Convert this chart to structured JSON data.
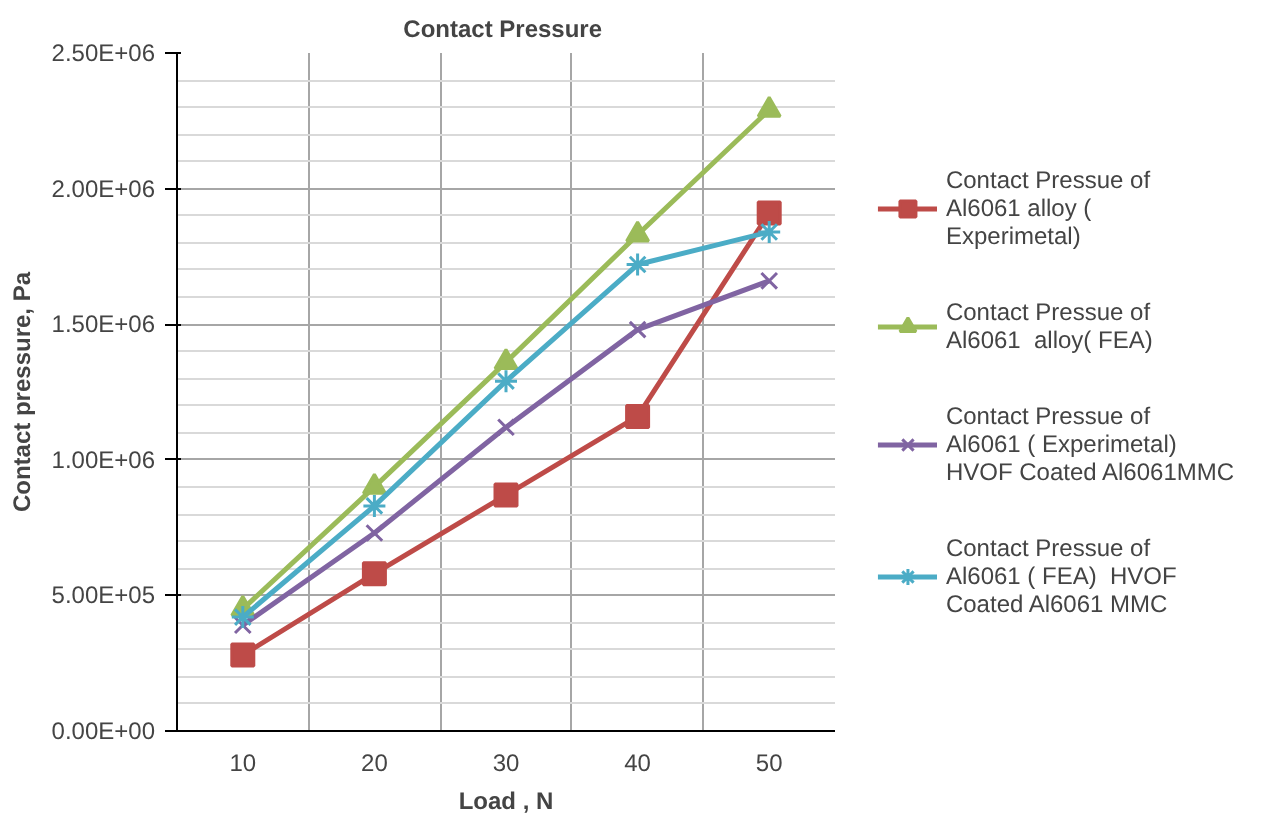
{
  "chart_data": {
    "type": "line",
    "title": "Contact  Pressure",
    "xlabel": "Load , N",
    "ylabel": "Contact pressure, Pa",
    "categories": [
      "10",
      "20",
      "30",
      "40",
      "50"
    ],
    "ylim": [
      0,
      2500000
    ],
    "yticks": [
      {
        "value": 0,
        "label": "0.00E+00"
      },
      {
        "value": 500000,
        "label": "5.00E+05"
      },
      {
        "value": 1000000,
        "label": "1.00E+06"
      },
      {
        "value": 1500000,
        "label": "1.50E+06"
      },
      {
        "value": 2000000,
        "label": "2.00E+06"
      },
      {
        "value": 2500000,
        "label": "2.50E+06"
      }
    ],
    "grid": true,
    "legend": "right",
    "series": [
      {
        "name": "Contact Pressue of Al6061 alloy ( Experimetal)",
        "color": "#be4b48",
        "marker": "square",
        "values": [
          280000,
          580000,
          870000,
          1160000,
          1910000
        ]
      },
      {
        "name": "Contact Pressue of Al6061  alloy( FEA)",
        "color": "#9bbb59",
        "marker": "triangle",
        "values": [
          450000,
          900000,
          1360000,
          1830000,
          2290000
        ]
      },
      {
        "name": "Contact Pressue of Al6061 ( Experimetal) HVOF Coated Al6061MMC",
        "color": "#8064a2",
        "marker": "x",
        "values": [
          390000,
          730000,
          1120000,
          1480000,
          1660000
        ]
      },
      {
        "name": "Contact Pressue of Al6061 ( FEA)  HVOF Coated Al6061 MMC",
        "color": "#4bacc6",
        "marker": "cross",
        "values": [
          420000,
          830000,
          1290000,
          1720000,
          1840000
        ]
      }
    ]
  }
}
